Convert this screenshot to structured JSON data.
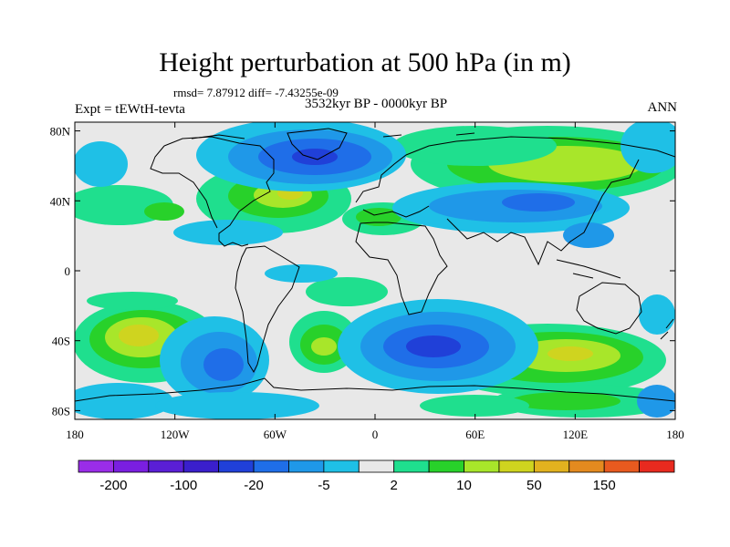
{
  "title": "Height perturbation at 500 hPa (in m)",
  "stats": "rmsd= 7.87912  diff= -7.43255e-09",
  "subtitle": "3532kyr BP - 0000kyr BP",
  "expt": "Expt = tEWtH-tevta",
  "season": "ANN",
  "x_ticks": [
    {
      "lon": -180,
      "label": "180"
    },
    {
      "lon": -120,
      "label": "120W"
    },
    {
      "lon": -60,
      "label": "60W"
    },
    {
      "lon": 0,
      "label": "0"
    },
    {
      "lon": 60,
      "label": "60E"
    },
    {
      "lon": 120,
      "label": "120E"
    },
    {
      "lon": 180,
      "label": "180"
    }
  ],
  "y_ticks": [
    {
      "lat": 80,
      "label": "80N"
    },
    {
      "lat": 40,
      "label": "40N"
    },
    {
      "lat": 0,
      "label": "0"
    },
    {
      "lat": -40,
      "label": "40S"
    },
    {
      "lat": -80,
      "label": "80S"
    }
  ],
  "colorbar": {
    "colors": [
      "#9a2de8",
      "#7a1fe0",
      "#5a1fd6",
      "#3a1fcc",
      "#2040d8",
      "#1f6ee8",
      "#1f98e8",
      "#1fc0e6",
      "#e8e8e8",
      "#1fdf8e",
      "#28d12a",
      "#a8e62a",
      "#cfd41f",
      "#e2b21f",
      "#e48a1f",
      "#e85a1f",
      "#e82a1f"
    ],
    "labels": [
      {
        "after_index": 0,
        "text": "-200"
      },
      {
        "after_index": 2,
        "text": "-100"
      },
      {
        "after_index": 4,
        "text": "-20"
      },
      {
        "after_index": 6,
        "text": "-5"
      },
      {
        "after_index": 8,
        "text": "2"
      },
      {
        "after_index": 10,
        "text": "10"
      },
      {
        "after_index": 12,
        "text": "50"
      },
      {
        "after_index": 14,
        "text": "150"
      }
    ]
  }
}
